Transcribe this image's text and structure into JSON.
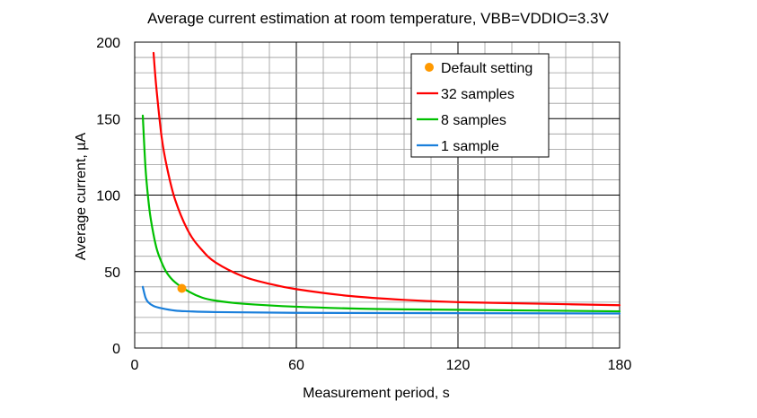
{
  "chart_data": {
    "type": "line",
    "title": "Average current estimation at room temperature, VBB=VDDIO=3.3V",
    "xlabel": "Measurement period, s",
    "ylabel": "Average current, µA",
    "xlim": [
      0,
      180
    ],
    "ylim": [
      0,
      200
    ],
    "xticks": [
      0,
      60,
      120,
      180
    ],
    "yticks": [
      0,
      50,
      100,
      150,
      200
    ],
    "x_minor_step": 10,
    "y_minor_step": 10,
    "grid": true,
    "legend_position": "top-right",
    "series": [
      {
        "name": "32 samples",
        "color": "#ff0000",
        "x": [
          7,
          8,
          10,
          12,
          15,
          20,
          25,
          30,
          40,
          50,
          60,
          80,
          100,
          120,
          150,
          180
        ],
        "y": [
          193,
          171,
          138,
          118,
          97,
          76,
          64,
          56,
          47,
          42,
          38.5,
          34,
          31.5,
          30,
          29,
          28
        ]
      },
      {
        "name": "8 samples",
        "color": "#00c000",
        "x": [
          3,
          4,
          5,
          6,
          8,
          10,
          12,
          15,
          20,
          25,
          30,
          40,
          60,
          90,
          120,
          180
        ],
        "y": [
          152,
          118,
          98,
          84,
          66,
          56,
          49,
          43,
          37,
          33,
          31,
          29,
          27,
          25.5,
          25,
          24
        ]
      },
      {
        "name": "1 sample",
        "color": "#1a7fdb",
        "x": [
          3,
          4,
          5,
          7,
          10,
          15,
          20,
          30,
          60,
          120,
          180
        ],
        "y": [
          40,
          33,
          30,
          27.5,
          26,
          24.5,
          24,
          23.5,
          23,
          22.8,
          22.6
        ]
      }
    ],
    "points": [
      {
        "name": "Default setting",
        "color": "#ff9900",
        "x": 17.5,
        "y": 39
      }
    ],
    "legend": [
      {
        "label": "Default setting",
        "kind": "marker",
        "color": "#ff9900"
      },
      {
        "label": "32 samples",
        "kind": "line",
        "color": "#ff0000"
      },
      {
        "label": "8 samples",
        "kind": "line",
        "color": "#00c000"
      },
      {
        "label": "1 sample",
        "kind": "line",
        "color": "#1a7fdb"
      }
    ]
  }
}
